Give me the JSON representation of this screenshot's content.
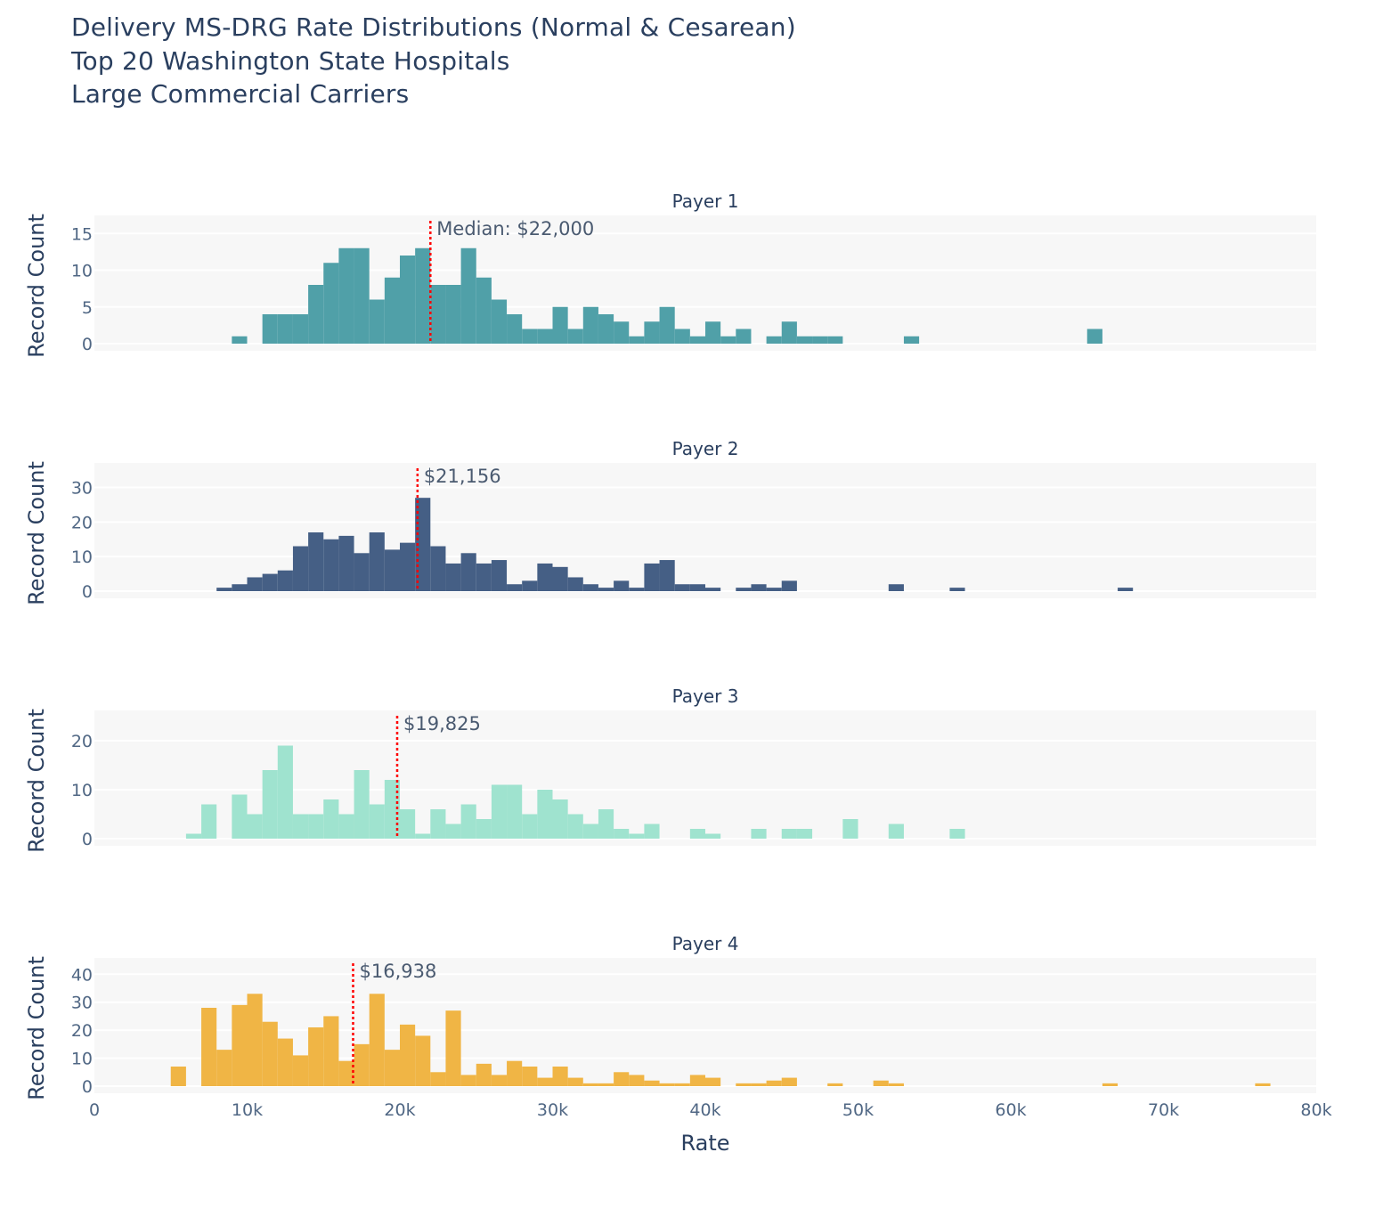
{
  "title": {
    "line1": "Delivery MS-DRG Rate Distributions (Normal & Cesarean)",
    "line2": "Top 20 Washington State Hospitals",
    "line3": "Large Commercial Carriers"
  },
  "chart_data": {
    "type": "histogram",
    "xlabel": "Rate",
    "ylabel": "Record Count",
    "xlim": [
      0,
      80000
    ],
    "x_ticks": [
      0,
      10000,
      20000,
      30000,
      40000,
      50000,
      60000,
      70000,
      80000
    ],
    "x_tick_labels": [
      "0",
      "10k",
      "20k",
      "30k",
      "40k",
      "50k",
      "60k",
      "70k",
      "80k"
    ],
    "bin_width": 1000,
    "grid": true,
    "legend": "none",
    "panels": [
      {
        "name": "Payer 1",
        "color": "#50a0a8",
        "median": 22000,
        "median_label": "Median: $22,000",
        "ylim": [
          0,
          16
        ],
        "y_ticks": [
          0,
          5,
          10,
          15
        ],
        "bins": [
          {
            "x": 9000,
            "count": 1
          },
          {
            "x": 11000,
            "count": 4
          },
          {
            "x": 12000,
            "count": 4
          },
          {
            "x": 13000,
            "count": 4
          },
          {
            "x": 14000,
            "count": 8
          },
          {
            "x": 15000,
            "count": 11
          },
          {
            "x": 16000,
            "count": 13
          },
          {
            "x": 17000,
            "count": 13
          },
          {
            "x": 18000,
            "count": 6
          },
          {
            "x": 19000,
            "count": 9
          },
          {
            "x": 20000,
            "count": 12
          },
          {
            "x": 21000,
            "count": 13
          },
          {
            "x": 22000,
            "count": 8
          },
          {
            "x": 23000,
            "count": 8
          },
          {
            "x": 24000,
            "count": 13
          },
          {
            "x": 25000,
            "count": 9
          },
          {
            "x": 26000,
            "count": 6
          },
          {
            "x": 27000,
            "count": 4
          },
          {
            "x": 28000,
            "count": 2
          },
          {
            "x": 29000,
            "count": 2
          },
          {
            "x": 30000,
            "count": 5
          },
          {
            "x": 31000,
            "count": 2
          },
          {
            "x": 32000,
            "count": 5
          },
          {
            "x": 33000,
            "count": 4
          },
          {
            "x": 34000,
            "count": 3
          },
          {
            "x": 35000,
            "count": 1
          },
          {
            "x": 36000,
            "count": 3
          },
          {
            "x": 37000,
            "count": 5
          },
          {
            "x": 38000,
            "count": 2
          },
          {
            "x": 39000,
            "count": 1
          },
          {
            "x": 40000,
            "count": 3
          },
          {
            "x": 41000,
            "count": 1
          },
          {
            "x": 42000,
            "count": 2
          },
          {
            "x": 44000,
            "count": 1
          },
          {
            "x": 45000,
            "count": 3
          },
          {
            "x": 46000,
            "count": 1
          },
          {
            "x": 47000,
            "count": 1
          },
          {
            "x": 48000,
            "count": 1
          },
          {
            "x": 53000,
            "count": 1
          },
          {
            "x": 65000,
            "count": 2
          }
        ]
      },
      {
        "name": "Payer 2",
        "color": "#455f85",
        "median": 21156,
        "median_label": "$21,156",
        "ylim": [
          0,
          34
        ],
        "y_ticks": [
          0,
          10,
          20,
          30
        ],
        "bins": [
          {
            "x": 8000,
            "count": 1
          },
          {
            "x": 9000,
            "count": 2
          },
          {
            "x": 10000,
            "count": 4
          },
          {
            "x": 11000,
            "count": 5
          },
          {
            "x": 12000,
            "count": 6
          },
          {
            "x": 13000,
            "count": 13
          },
          {
            "x": 14000,
            "count": 17
          },
          {
            "x": 15000,
            "count": 15
          },
          {
            "x": 16000,
            "count": 16
          },
          {
            "x": 17000,
            "count": 11
          },
          {
            "x": 18000,
            "count": 17
          },
          {
            "x": 19000,
            "count": 12
          },
          {
            "x": 20000,
            "count": 14
          },
          {
            "x": 21000,
            "count": 27
          },
          {
            "x": 22000,
            "count": 13
          },
          {
            "x": 23000,
            "count": 8
          },
          {
            "x": 24000,
            "count": 11
          },
          {
            "x": 25000,
            "count": 8
          },
          {
            "x": 26000,
            "count": 9
          },
          {
            "x": 27000,
            "count": 2
          },
          {
            "x": 28000,
            "count": 3
          },
          {
            "x": 29000,
            "count": 8
          },
          {
            "x": 30000,
            "count": 7
          },
          {
            "x": 31000,
            "count": 4
          },
          {
            "x": 32000,
            "count": 2
          },
          {
            "x": 33000,
            "count": 1
          },
          {
            "x": 34000,
            "count": 3
          },
          {
            "x": 35000,
            "count": 1
          },
          {
            "x": 36000,
            "count": 8
          },
          {
            "x": 37000,
            "count": 9
          },
          {
            "x": 38000,
            "count": 2
          },
          {
            "x": 39000,
            "count": 2
          },
          {
            "x": 40000,
            "count": 1
          },
          {
            "x": 42000,
            "count": 1
          },
          {
            "x": 43000,
            "count": 2
          },
          {
            "x": 44000,
            "count": 1
          },
          {
            "x": 45000,
            "count": 3
          },
          {
            "x": 52000,
            "count": 2
          },
          {
            "x": 56000,
            "count": 1
          },
          {
            "x": 67000,
            "count": 1
          }
        ]
      },
      {
        "name": "Payer 3",
        "color": "#9fe3cf",
        "median": 19825,
        "median_label": "$19,825",
        "ylim": [
          0,
          24
        ],
        "y_ticks": [
          0,
          10,
          20
        ],
        "bins": [
          {
            "x": 6000,
            "count": 1
          },
          {
            "x": 7000,
            "count": 7
          },
          {
            "x": 9000,
            "count": 9
          },
          {
            "x": 10000,
            "count": 5
          },
          {
            "x": 11000,
            "count": 14
          },
          {
            "x": 12000,
            "count": 19
          },
          {
            "x": 13000,
            "count": 5
          },
          {
            "x": 14000,
            "count": 5
          },
          {
            "x": 15000,
            "count": 8
          },
          {
            "x": 16000,
            "count": 5
          },
          {
            "x": 17000,
            "count": 14
          },
          {
            "x": 18000,
            "count": 7
          },
          {
            "x": 19000,
            "count": 12
          },
          {
            "x": 20000,
            "count": 6
          },
          {
            "x": 21000,
            "count": 1
          },
          {
            "x": 22000,
            "count": 6
          },
          {
            "x": 23000,
            "count": 3
          },
          {
            "x": 24000,
            "count": 7
          },
          {
            "x": 25000,
            "count": 4
          },
          {
            "x": 26000,
            "count": 11
          },
          {
            "x": 27000,
            "count": 11
          },
          {
            "x": 28000,
            "count": 5
          },
          {
            "x": 29000,
            "count": 10
          },
          {
            "x": 30000,
            "count": 8
          },
          {
            "x": 31000,
            "count": 5
          },
          {
            "x": 32000,
            "count": 3
          },
          {
            "x": 33000,
            "count": 6
          },
          {
            "x": 34000,
            "count": 2
          },
          {
            "x": 35000,
            "count": 1
          },
          {
            "x": 36000,
            "count": 3
          },
          {
            "x": 39000,
            "count": 2
          },
          {
            "x": 40000,
            "count": 1
          },
          {
            "x": 43000,
            "count": 2
          },
          {
            "x": 45000,
            "count": 2
          },
          {
            "x": 46000,
            "count": 2
          },
          {
            "x": 49000,
            "count": 4
          },
          {
            "x": 52000,
            "count": 3
          },
          {
            "x": 56000,
            "count": 2
          }
        ]
      },
      {
        "name": "Payer 4",
        "color": "#f0b545",
        "median": 16938,
        "median_label": "$16,938",
        "ylim": [
          0,
          42
        ],
        "y_ticks": [
          0,
          10,
          20,
          30,
          40
        ],
        "bins": [
          {
            "x": 5000,
            "count": 7
          },
          {
            "x": 7000,
            "count": 28
          },
          {
            "x": 8000,
            "count": 13
          },
          {
            "x": 9000,
            "count": 29
          },
          {
            "x": 10000,
            "count": 33
          },
          {
            "x": 11000,
            "count": 23
          },
          {
            "x": 12000,
            "count": 17
          },
          {
            "x": 13000,
            "count": 11
          },
          {
            "x": 14000,
            "count": 21
          },
          {
            "x": 15000,
            "count": 25
          },
          {
            "x": 16000,
            "count": 9
          },
          {
            "x": 17000,
            "count": 15
          },
          {
            "x": 18000,
            "count": 33
          },
          {
            "x": 19000,
            "count": 13
          },
          {
            "x": 20000,
            "count": 22
          },
          {
            "x": 21000,
            "count": 18
          },
          {
            "x": 22000,
            "count": 5
          },
          {
            "x": 23000,
            "count": 27
          },
          {
            "x": 24000,
            "count": 4
          },
          {
            "x": 25000,
            "count": 8
          },
          {
            "x": 26000,
            "count": 4
          },
          {
            "x": 27000,
            "count": 9
          },
          {
            "x": 28000,
            "count": 7
          },
          {
            "x": 29000,
            "count": 3
          },
          {
            "x": 30000,
            "count": 7
          },
          {
            "x": 31000,
            "count": 3
          },
          {
            "x": 32000,
            "count": 1
          },
          {
            "x": 33000,
            "count": 1
          },
          {
            "x": 34000,
            "count": 5
          },
          {
            "x": 35000,
            "count": 4
          },
          {
            "x": 36000,
            "count": 2
          },
          {
            "x": 37000,
            "count": 1
          },
          {
            "x": 38000,
            "count": 1
          },
          {
            "x": 39000,
            "count": 4
          },
          {
            "x": 40000,
            "count": 3
          },
          {
            "x": 42000,
            "count": 1
          },
          {
            "x": 43000,
            "count": 1
          },
          {
            "x": 44000,
            "count": 2
          },
          {
            "x": 45000,
            "count": 3
          },
          {
            "x": 48000,
            "count": 1
          },
          {
            "x": 51000,
            "count": 2
          },
          {
            "x": 52000,
            "count": 1
          },
          {
            "x": 66000,
            "count": 1
          },
          {
            "x": 76000,
            "count": 1
          }
        ]
      }
    ]
  }
}
